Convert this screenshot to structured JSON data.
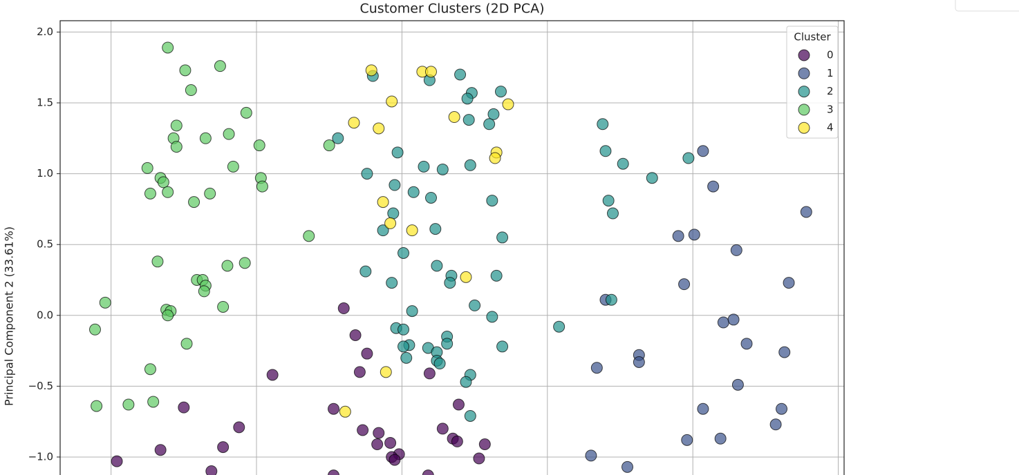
{
  "chart_data": {
    "type": "scatter",
    "title": "Customer Clusters (2D PCA)",
    "y_label": "Principal Component 2 (33.61%)",
    "legend_title": "Cluster",
    "legend": "upper right",
    "grid": true,
    "xlim": [
      -2.35,
      3.04
    ],
    "ylim": [
      -1.2,
      2.08
    ],
    "xticks": [
      -2,
      -1,
      0,
      1,
      2,
      3
    ],
    "yticks": [
      {
        "value": -1.0,
        "label": "−1.0"
      },
      {
        "value": -0.5,
        "label": "−0.5"
      },
      {
        "value": 0.0,
        "label": "0.0"
      },
      {
        "value": 0.5,
        "label": "0.5"
      },
      {
        "value": 1.0,
        "label": "1.0"
      },
      {
        "value": 1.5,
        "label": "1.5"
      },
      {
        "value": 2.0,
        "label": "2.0"
      }
    ],
    "series": [
      {
        "name": "0",
        "color": "#440154",
        "x": [
          -0.4,
          -0.32,
          -0.24,
          -0.29,
          -0.89,
          0.19,
          -1.5,
          -0.47,
          0.39,
          -1.12,
          -0.27,
          -0.16,
          0.28,
          0.35,
          0.38,
          0.57,
          -0.17,
          -0.08,
          -1.23,
          -1.66,
          -0.02,
          -0.07,
          -0.05,
          0.53,
          -1.96,
          -1.31,
          -0.47,
          0.18
        ],
        "y": [
          0.05,
          -0.14,
          -0.27,
          -0.4,
          -0.42,
          -0.41,
          -0.65,
          -0.66,
          -0.63,
          -0.79,
          -0.81,
          -0.83,
          -0.8,
          -0.87,
          -0.89,
          -0.91,
          -0.91,
          -0.9,
          -0.93,
          -0.95,
          -0.98,
          -1.0,
          -1.02,
          -1.01,
          -1.03,
          -1.1,
          -1.13,
          -1.13
        ]
      },
      {
        "name": "1",
        "color": "#3b528b",
        "x": [
          2.07,
          2.14,
          2.78,
          1.9,
          2.01,
          2.3,
          1.94,
          2.66,
          1.4,
          2.21,
          2.28,
          2.37,
          2.63,
          1.63,
          1.63,
          1.34,
          2.31,
          2.07,
          2.61,
          2.57,
          2.19,
          1.96,
          1.3,
          1.55
        ],
        "y": [
          1.16,
          0.91,
          0.73,
          0.56,
          0.57,
          0.46,
          0.22,
          0.23,
          0.11,
          -0.05,
          -0.03,
          -0.2,
          -0.26,
          -0.28,
          -0.33,
          -0.37,
          -0.49,
          -0.66,
          -0.66,
          -0.77,
          -0.87,
          -0.88,
          -0.99,
          -1.07
        ]
      },
      {
        "name": "2",
        "color": "#21918c",
        "x": [
          -0.2,
          0.4,
          0.19,
          0.68,
          0.48,
          0.45,
          0.63,
          0.46,
          0.6,
          -0.44,
          -0.03,
          0.15,
          0.28,
          0.47,
          -0.24,
          -0.05,
          0.08,
          0.2,
          0.62,
          -0.06,
          -0.13,
          0.23,
          0.69,
          0.01,
          -0.25,
          0.24,
          0.34,
          0.33,
          0.65,
          -0.07,
          0.5,
          0.07,
          0.62,
          -0.04,
          0.01,
          0.31,
          0.05,
          0.01,
          0.18,
          0.31,
          0.69,
          0.24,
          0.03,
          0.24,
          0.26,
          0.47,
          0.44,
          0.47,
          1.38,
          1.4,
          1.52,
          1.72,
          1.42,
          1.45,
          1.97,
          1.44,
          1.08
        ],
        "y": [
          1.69,
          1.7,
          1.66,
          1.58,
          1.57,
          1.53,
          1.42,
          1.38,
          1.35,
          1.25,
          1.15,
          1.05,
          1.03,
          1.06,
          1.0,
          0.92,
          0.87,
          0.83,
          0.81,
          0.72,
          0.6,
          0.61,
          0.55,
          0.44,
          0.31,
          0.35,
          0.28,
          0.23,
          0.28,
          0.23,
          0.07,
          0.03,
          -0.01,
          -0.09,
          -0.1,
          -0.15,
          -0.21,
          -0.22,
          -0.23,
          -0.2,
          -0.22,
          -0.26,
          -0.3,
          -0.32,
          -0.34,
          -0.42,
          -0.47,
          -0.71,
          1.35,
          1.16,
          1.07,
          0.97,
          0.81,
          0.72,
          1.11,
          0.11,
          -0.08
        ]
      },
      {
        "name": "3",
        "color": "#5ec962",
        "x": [
          -1.61,
          -1.49,
          -1.25,
          -1.45,
          -1.07,
          -1.55,
          -1.57,
          -1.35,
          -1.19,
          -1.55,
          -0.98,
          -1.75,
          -1.16,
          -1.66,
          -1.64,
          -1.73,
          -1.61,
          -1.43,
          -1.32,
          -0.97,
          -0.96,
          -0.64,
          -0.5,
          -1.68,
          -1.41,
          -1.37,
          -1.35,
          -1.36,
          -1.2,
          -1.08,
          -2.04,
          -1.62,
          -1.59,
          -1.61,
          -1.23,
          -2.11,
          -1.48,
          -1.73,
          -2.1,
          -1.88,
          -1.71
        ],
        "y": [
          1.89,
          1.73,
          1.76,
          1.59,
          1.43,
          1.34,
          1.25,
          1.25,
          1.28,
          1.19,
          1.2,
          1.04,
          1.05,
          0.97,
          0.94,
          0.86,
          0.87,
          0.8,
          0.86,
          0.97,
          0.91,
          0.56,
          1.2,
          0.38,
          0.25,
          0.25,
          0.21,
          0.17,
          0.35,
          0.37,
          0.09,
          0.04,
          0.03,
          0.0,
          0.06,
          -0.1,
          -0.2,
          -0.38,
          -0.64,
          -0.63,
          -0.61
        ]
      },
      {
        "name": "4",
        "color": "#fde725",
        "x": [
          -0.21,
          0.14,
          0.2,
          0.73,
          -0.07,
          0.36,
          -0.33,
          -0.16,
          0.65,
          0.64,
          -0.13,
          -0.08,
          0.07,
          0.44,
          -0.11,
          -0.39
        ],
        "y": [
          1.73,
          1.72,
          1.72,
          1.49,
          1.51,
          1.4,
          1.36,
          1.32,
          1.15,
          1.11,
          0.8,
          0.65,
          0.6,
          0.27,
          -0.4,
          -0.68
        ]
      }
    ]
  }
}
